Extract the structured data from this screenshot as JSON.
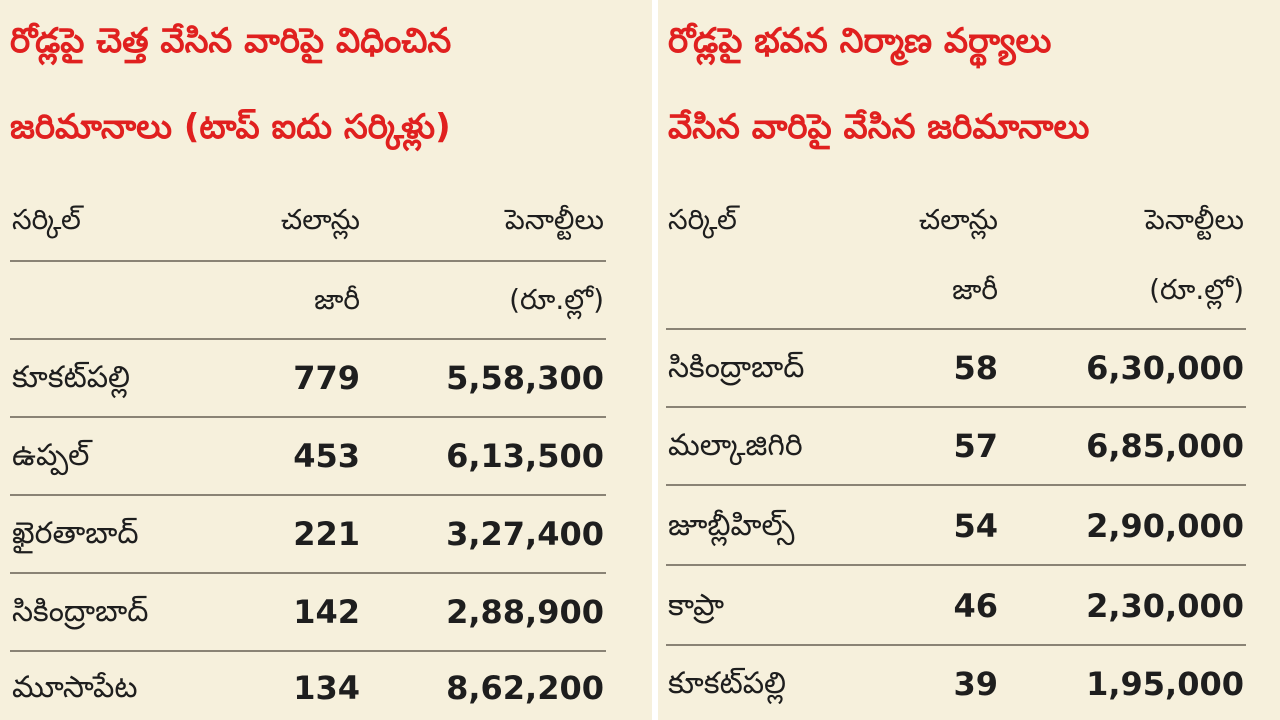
{
  "left_table": {
    "title_line1": "రోడ్లపై చెత్త వేసిన వారిపై విధించిన",
    "title_line2": "జరిమానాలు (టాప్‌ ఐదు సర్కిళ్లు)",
    "headers": {
      "circle": "సర్కిల్‌",
      "challans_line1": "చలాన్లు",
      "challans_line2": "జారీ",
      "penalties_line1": "పెనాల్టీలు",
      "penalties_line2": "(రూ.ల్లో)"
    },
    "rows": [
      {
        "circle": "కూకట్‌పల్లి",
        "challans": "779",
        "penalty": "5,58,300"
      },
      {
        "circle": "ఉప్పల్‌",
        "challans": "453",
        "penalty": "6,13,500"
      },
      {
        "circle": "ఖైరతాబాద్‌",
        "challans": "221",
        "penalty": "3,27,400"
      },
      {
        "circle": "సికింద్రాబాద్‌",
        "challans": "142",
        "penalty": "2,88,900"
      },
      {
        "circle": "మూసాపేట",
        "challans": "134",
        "penalty": "8,62,200"
      }
    ]
  },
  "right_table": {
    "title_line1": "రోడ్లపై భవన నిర్మాణ వర్థ్యాలు",
    "title_line2": "వేసిన వారిపై వేసిన జరిమానాలు",
    "headers": {
      "circle": "సర్కిల్‌",
      "challans_line1": "చలాన్లు",
      "challans_line2": "జారీ",
      "penalties_line1": "పెనాల్టీలు",
      "penalties_line2": "(రూ.ల్లో)"
    },
    "rows": [
      {
        "circle": "సికింద్రాబాద్‌",
        "challans": "58",
        "penalty": "6,30,000"
      },
      {
        "circle": "మల్కాజిగిరి",
        "challans": "57",
        "penalty": "6,85,000"
      },
      {
        "circle": "జూబ్లీహిల్స్‌",
        "challans": "54",
        "penalty": "2,90,000"
      },
      {
        "circle": "కాప్రా",
        "challans": "46",
        "penalty": "2,30,000"
      },
      {
        "circle": "కూకట్‌పల్లి",
        "challans": "39",
        "penalty": "1,95,000"
      }
    ]
  },
  "colors": {
    "title": "#e0201f",
    "background": "#f6f0dc",
    "text": "#1e1e1e"
  }
}
